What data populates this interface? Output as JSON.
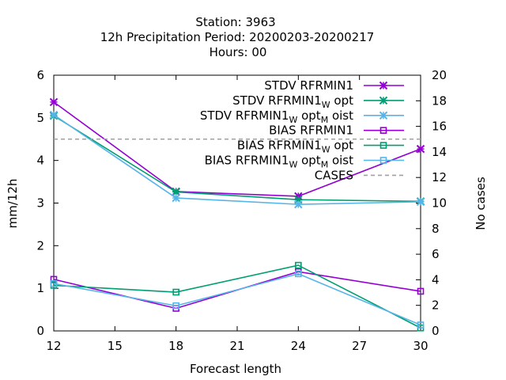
{
  "chart_data": {
    "type": "line",
    "title_lines": [
      "Station:     3963",
      "12h Precipitation    Period: 20200203-20200217",
      "Hours:  00"
    ],
    "xlabel": "Forecast length",
    "ylabel": "mm/12h",
    "y2label": "No cases",
    "x": [
      12,
      18,
      24,
      30
    ],
    "xticks": [
      "12",
      "15",
      "18",
      "21",
      "24",
      "27",
      "30"
    ],
    "xlim": [
      12,
      30
    ],
    "ylim": [
      0,
      6
    ],
    "yticks": [
      "0",
      "1",
      "2",
      "3",
      "4",
      "5",
      "6"
    ],
    "y2lim": [
      0,
      20
    ],
    "y2ticks": [
      "0",
      "2",
      "4",
      "6",
      "8",
      "10",
      "12",
      "14",
      "16",
      "18",
      "20"
    ],
    "grid": false,
    "legend_position": "top-right",
    "series": [
      {
        "name": "STDV RFRMIN1",
        "label_parts": [
          {
            "t": "STDV RFRMIN1"
          }
        ],
        "color": "#9400d3",
        "marker": "x",
        "values": [
          5.37,
          3.27,
          3.16,
          4.27
        ]
      },
      {
        "name": "STDV RFRMIN1_W opt",
        "label_parts": [
          {
            "t": "STDV RFRMIN1"
          },
          {
            "t": "W",
            "sub": true
          },
          {
            "t": " opt"
          }
        ],
        "color": "#009e73",
        "marker": "x",
        "values": [
          5.05,
          3.26,
          3.08,
          3.04
        ]
      },
      {
        "name": "STDV RFRMIN1_W opt_M oist",
        "label_parts": [
          {
            "t": "STDV RFRMIN1"
          },
          {
            "t": "W",
            "sub": true
          },
          {
            "t": " opt"
          },
          {
            "t": "M",
            "sub": true
          },
          {
            "t": " oist"
          }
        ],
        "color": "#56b4e9",
        "marker": "x",
        "values": [
          5.07,
          3.12,
          2.97,
          3.03
        ]
      },
      {
        "name": "BIAS RFRMIN1",
        "label_parts": [
          {
            "t": "BIAS RFRMIN1"
          }
        ],
        "color": "#9400d3",
        "marker": "square",
        "values": [
          1.21,
          0.53,
          1.39,
          0.93
        ]
      },
      {
        "name": "BIAS RFRMIN1_W opt",
        "label_parts": [
          {
            "t": "BIAS RFRMIN1"
          },
          {
            "t": "W",
            "sub": true
          },
          {
            "t": " opt"
          }
        ],
        "color": "#009e73",
        "marker": "square",
        "values": [
          1.07,
          0.91,
          1.54,
          0.07
        ]
      },
      {
        "name": "BIAS RFRMIN1_W opt_M oist",
        "label_parts": [
          {
            "t": "BIAS RFRMIN1"
          },
          {
            "t": "W",
            "sub": true
          },
          {
            "t": " opt"
          },
          {
            "t": "M",
            "sub": true
          },
          {
            "t": " oist"
          }
        ],
        "color": "#56b4e9",
        "marker": "square",
        "values": [
          1.11,
          0.59,
          1.34,
          0.14
        ]
      },
      {
        "name": "CASES",
        "label_parts": [
          {
            "t": "CASES"
          }
        ],
        "color": "#a0a0a0",
        "marker": "none",
        "dashed": true,
        "axis": "y2",
        "values": [
          15,
          15,
          15,
          15
        ]
      }
    ]
  }
}
